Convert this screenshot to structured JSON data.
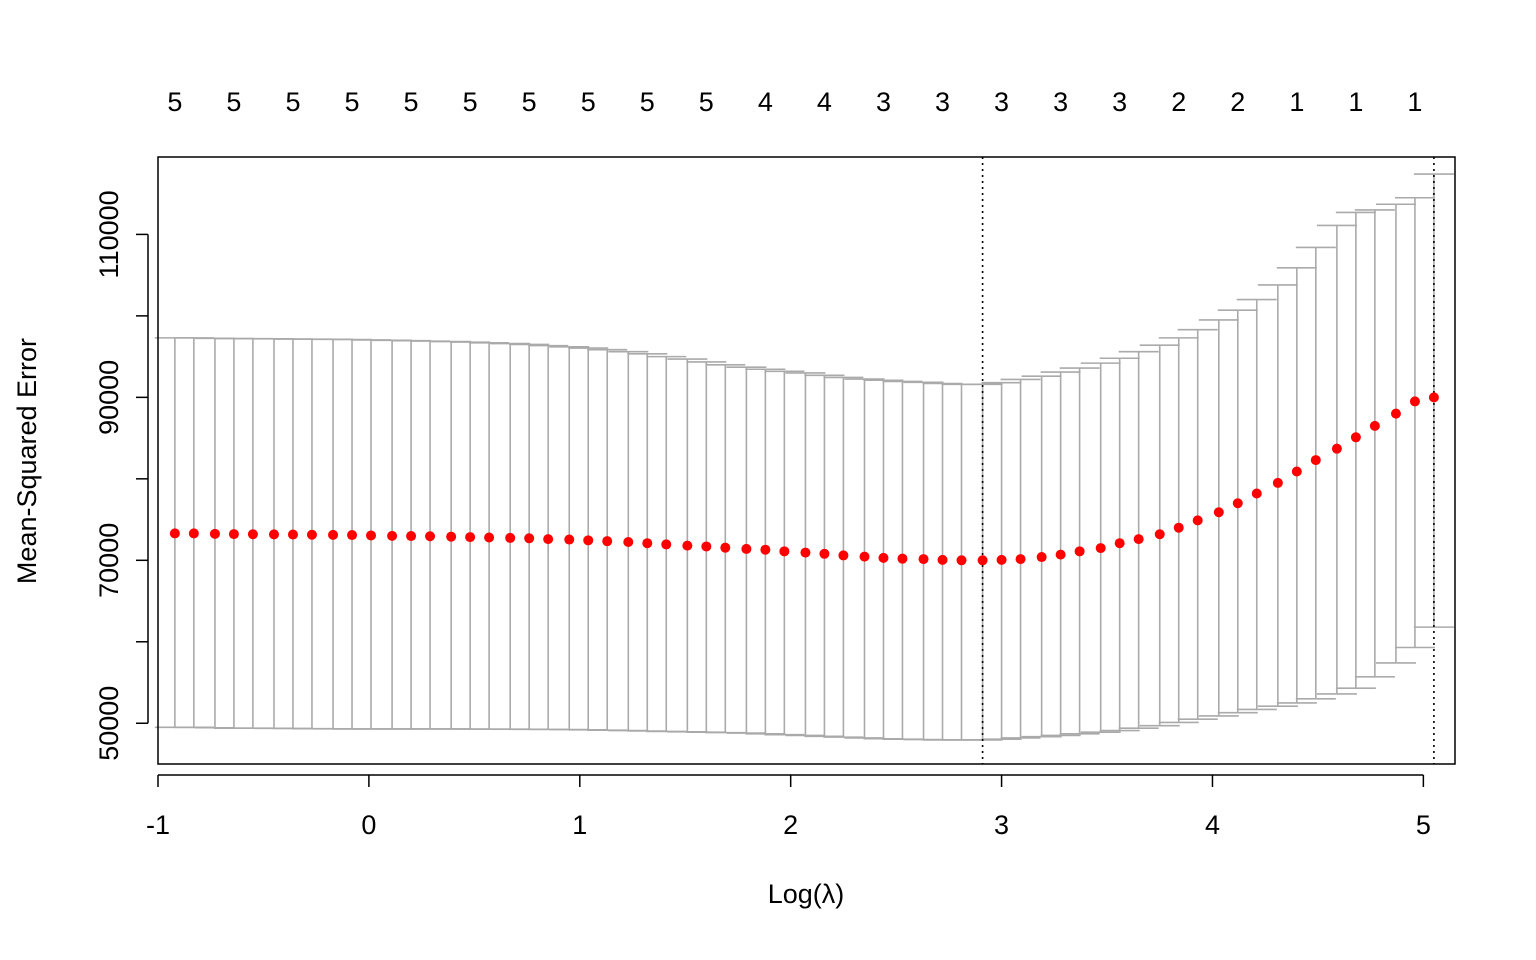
{
  "chart_data": {
    "type": "scatter",
    "title": "",
    "xlabel": "Log(λ)",
    "ylabel": "Mean-Squared Error",
    "xlim": [
      -1.0,
      5.15
    ],
    "ylim": [
      45000,
      119500
    ],
    "xticks": [
      -1,
      0,
      1,
      2,
      3,
      4,
      5
    ],
    "xtick_labels": [
      "-1",
      "0",
      "1",
      "2",
      "3",
      "4",
      "5"
    ],
    "yticks": [
      50000,
      60000,
      70000,
      80000,
      90000,
      100000,
      110000
    ],
    "ytick_labels": [
      "50000",
      "",
      "70000",
      "",
      "90000",
      "",
      "110000"
    ],
    "top_axis": {
      "x": [
        -0.92,
        -0.64,
        -0.36,
        -0.08,
        0.2,
        0.48,
        0.76,
        1.04,
        1.32,
        1.6,
        1.88,
        2.16,
        2.44,
        2.72,
        3.0,
        3.28,
        3.56,
        3.84,
        4.12,
        4.4,
        4.68,
        4.96
      ],
      "labels": [
        "5",
        "5",
        "5",
        "5",
        "5",
        "5",
        "5",
        "5",
        "5",
        "5",
        "4",
        "4",
        "3",
        "3",
        "3",
        "3",
        "3",
        "2",
        "2",
        "1",
        "1",
        "1"
      ]
    },
    "reference_lines": {
      "lambda_min": 2.91,
      "lambda_1se": 5.05
    },
    "grid": false,
    "point_color": "#ff0000",
    "errorbar_color": "#aaaaaa",
    "series": [
      {
        "x": [
          -0.92,
          -0.83,
          -0.73,
          -0.64,
          -0.55,
          -0.45,
          -0.36,
          -0.27,
          -0.17,
          -0.08,
          0.01,
          0.11,
          0.2,
          0.29,
          0.39,
          0.48,
          0.57,
          0.67,
          0.76,
          0.85,
          0.95,
          1.04,
          1.13,
          1.23,
          1.32,
          1.41,
          1.51,
          1.6,
          1.69,
          1.79,
          1.88,
          1.97,
          2.07,
          2.16,
          2.25,
          2.35,
          2.44,
          2.53,
          2.63,
          2.72,
          2.81,
          2.91,
          3.0,
          3.09,
          3.19,
          3.28,
          3.37,
          3.47,
          3.56,
          3.65,
          3.75,
          3.84,
          3.93,
          4.03,
          4.12,
          4.21,
          4.31,
          4.4,
          4.49,
          4.59,
          4.68,
          4.77,
          4.87,
          4.96,
          5.05
        ],
        "values": [
          73300,
          73300,
          73250,
          73220,
          73200,
          73180,
          73160,
          73140,
          73120,
          73100,
          73050,
          73000,
          72980,
          72950,
          72900,
          72850,
          72800,
          72750,
          72700,
          72600,
          72550,
          72450,
          72350,
          72250,
          72100,
          71950,
          71800,
          71700,
          71550,
          71400,
          71300,
          71100,
          70950,
          70800,
          70600,
          70450,
          70300,
          70200,
          70150,
          70050,
          70000,
          70000,
          70050,
          70150,
          70400,
          70700,
          71100,
          71500,
          72100,
          72600,
          73200,
          74000,
          74900,
          75900,
          77000,
          78200,
          79500,
          80900,
          82300,
          83700,
          85100,
          86500,
          88000,
          89500,
          90000
        ],
        "upper": [
          97300,
          97300,
          97250,
          97220,
          97200,
          97180,
          97160,
          97140,
          97120,
          97100,
          97050,
          97000,
          96950,
          96900,
          96850,
          96780,
          96700,
          96600,
          96500,
          96350,
          96200,
          96050,
          95850,
          95600,
          95350,
          95000,
          94700,
          94350,
          94000,
          93700,
          93450,
          93200,
          93000,
          92700,
          92450,
          92250,
          92100,
          91950,
          91850,
          91700,
          91600,
          91600,
          91800,
          92200,
          92600,
          93100,
          93600,
          94200,
          94800,
          95600,
          96400,
          97300,
          98300,
          99500,
          100700,
          102000,
          103800,
          105900,
          108400,
          111100,
          112700,
          113000,
          113700,
          114500,
          115300
        ]
      }
    ],
    "lower": [
      49500,
      49500,
      49450,
      49400,
      49400,
      49380,
      49360,
      49340,
      49320,
      49300,
      49300,
      49300,
      49300,
      49300,
      49300,
      49290,
      49280,
      49270,
      49260,
      49250,
      49230,
      49200,
      49150,
      49100,
      49050,
      49000,
      48950,
      48900,
      48850,
      48800,
      48700,
      48600,
      48500,
      48400,
      48300,
      48200,
      48100,
      48050,
      48000,
      47950,
      47950,
      47950,
      48050,
      48200,
      48350,
      48500,
      48700,
      48900,
      49100,
      49400,
      49700,
      50100,
      50500,
      50900,
      51300,
      51700,
      52100,
      52500,
      53000,
      53600,
      54300,
      55700,
      57400,
      59300,
      61800
    ],
    "upper_last": 117400
  }
}
